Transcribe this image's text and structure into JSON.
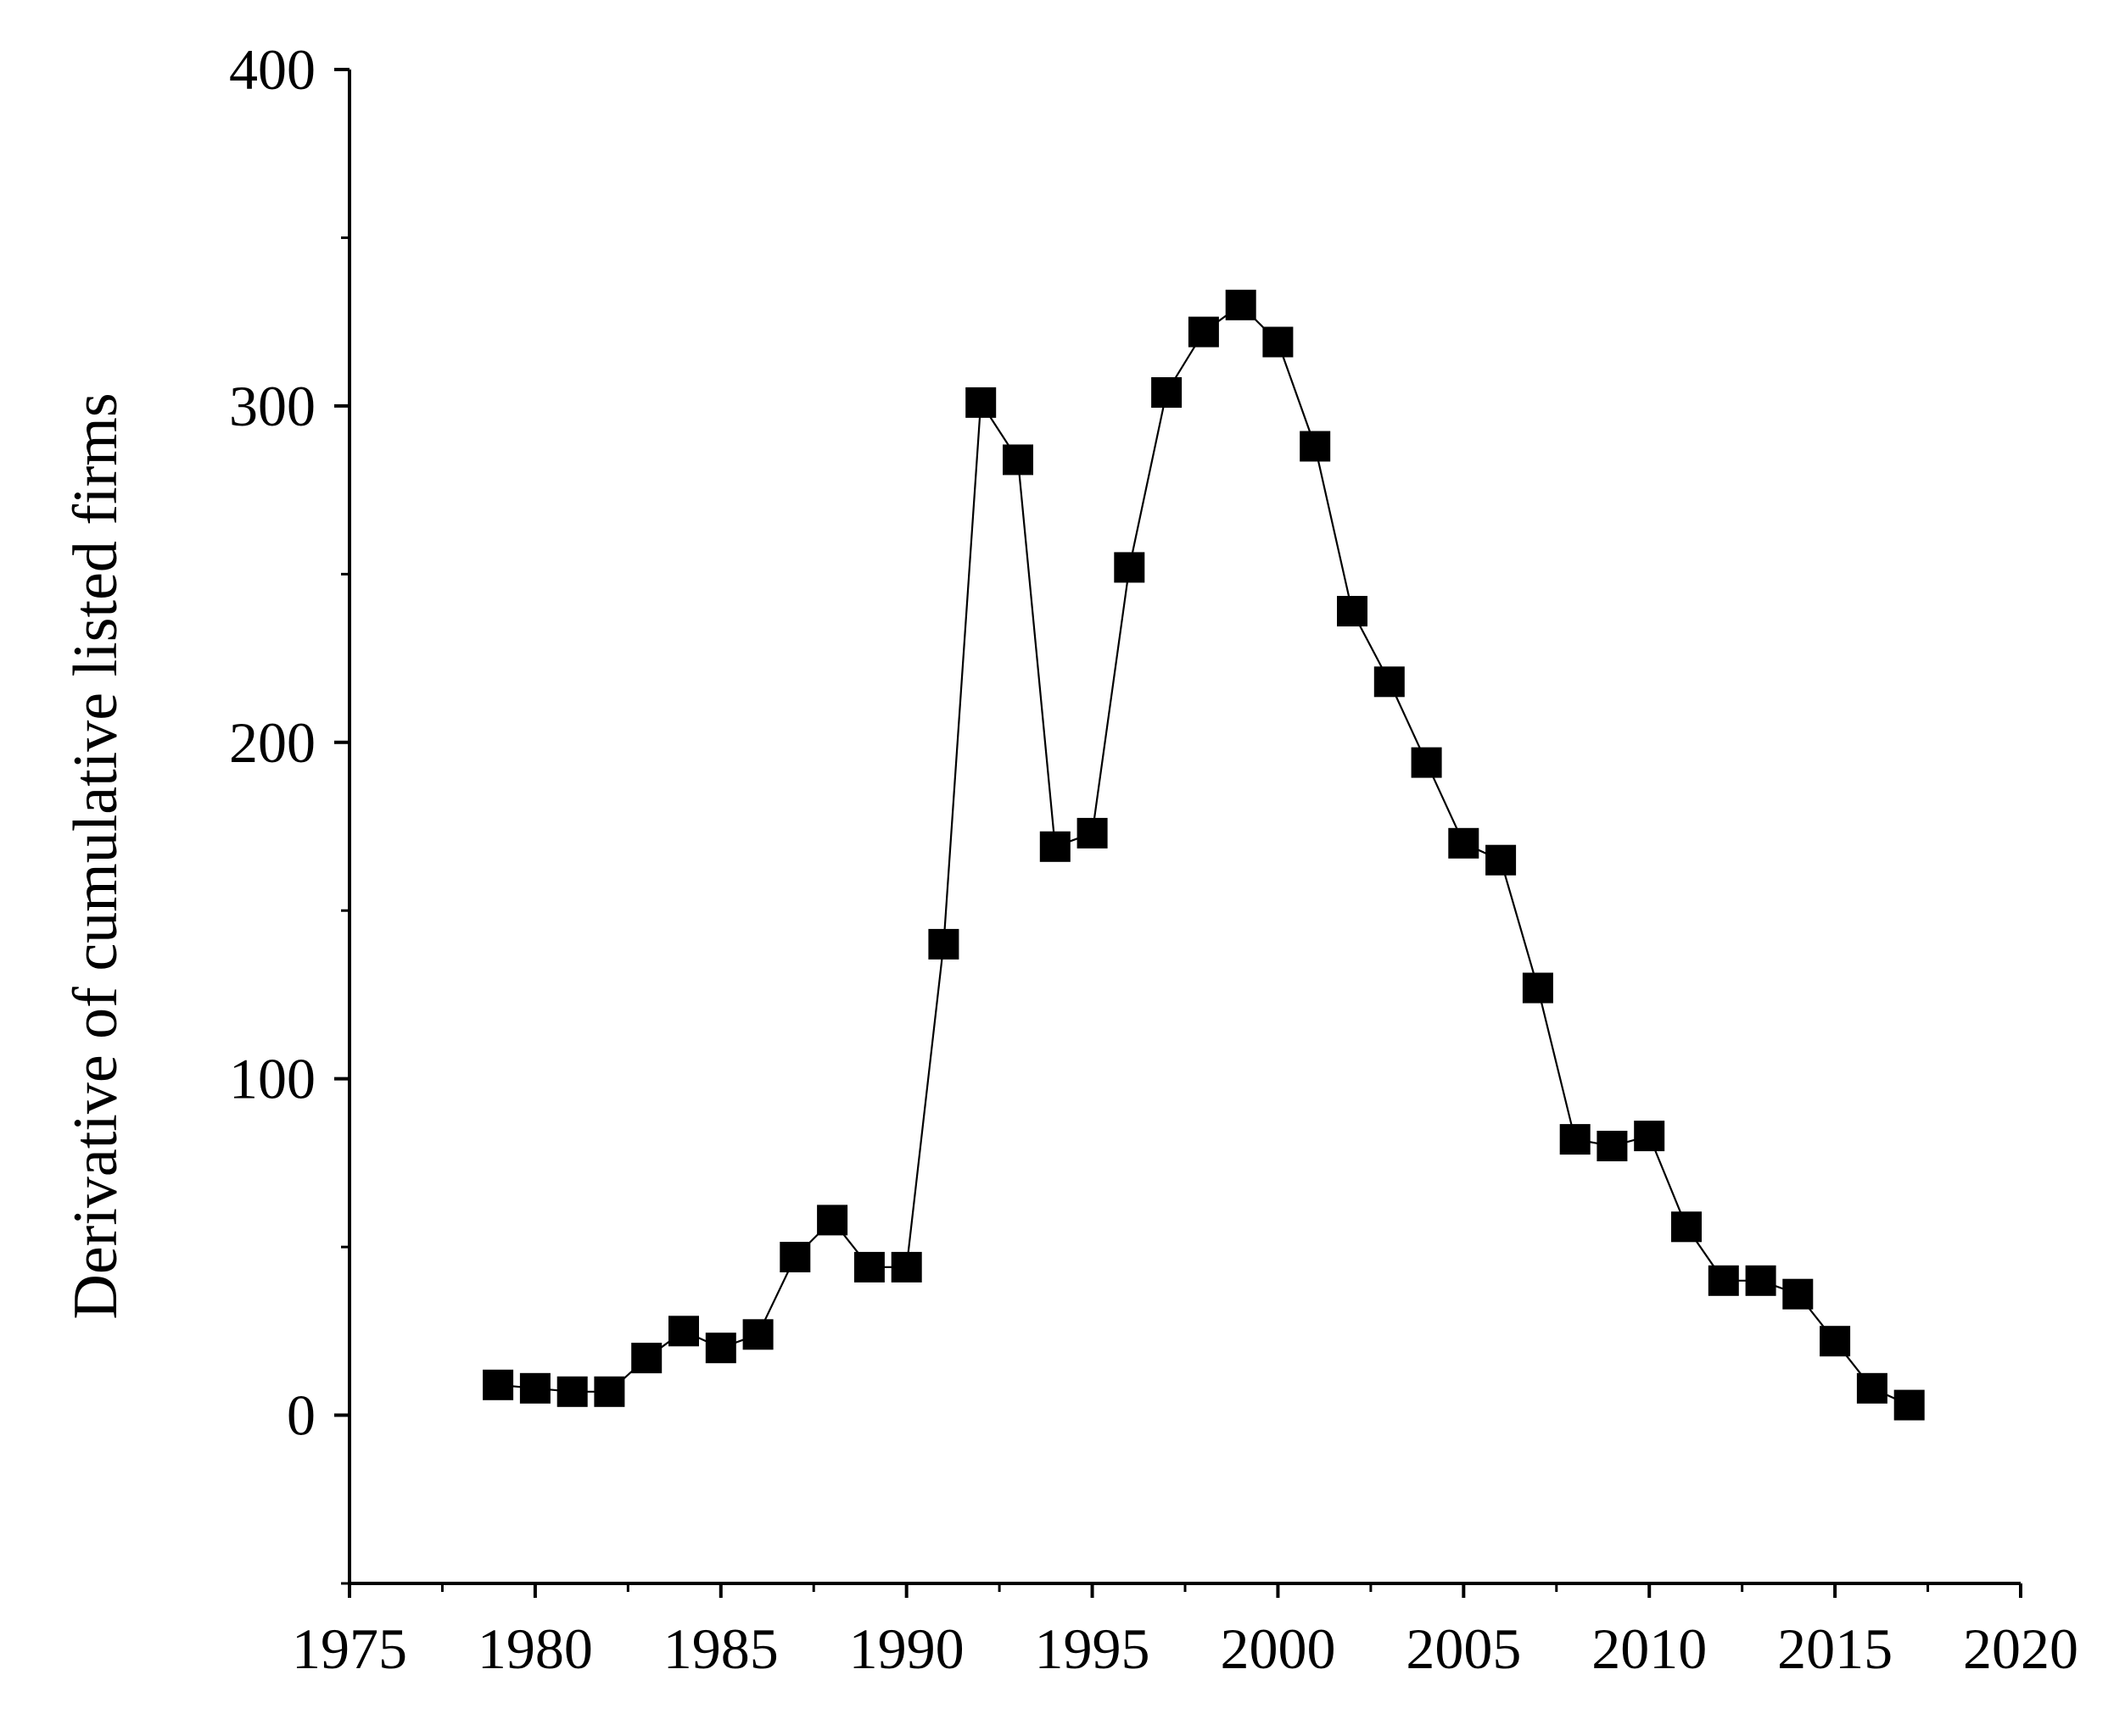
{
  "chart_data": {
    "type": "scatter",
    "title": "",
    "xlabel": "",
    "ylabel": "Derivative of cumulative listed firms",
    "xlim": [
      1975,
      2020
    ],
    "ylim": [
      -50,
      400
    ],
    "xticks": [
      1975,
      1980,
      1985,
      1990,
      1995,
      2000,
      2005,
      2010,
      2015,
      2020
    ],
    "yticks": [
      0,
      100,
      200,
      300,
      400
    ],
    "grid": false,
    "legend": "none",
    "marker": "square",
    "connected": true,
    "colors": {
      "marker": "#000000",
      "line": "#000000",
      "axis": "#000000"
    },
    "series": [
      {
        "x": [
          1979,
          1980,
          1981,
          1982,
          1983,
          1984,
          1985,
          1986,
          1987,
          1988,
          1989,
          1990,
          1991,
          1992,
          1993,
          1994,
          1995,
          1996,
          1997,
          1998,
          1999,
          2000,
          2001,
          2002,
          2003,
          2004,
          2005,
          2006,
          2007,
          2008,
          2009,
          2010,
          2011,
          2012,
          2013,
          2014,
          2015,
          2016,
          2017
        ],
        "y": [
          9,
          8,
          7,
          7,
          17,
          25,
          20,
          24,
          47,
          58,
          44,
          44,
          140,
          301,
          284,
          169,
          173,
          252,
          304,
          322,
          330,
          319,
          288,
          239,
          218,
          194,
          170,
          165,
          127,
          82,
          80,
          83,
          56,
          40,
          40,
          36,
          22,
          8,
          3
        ]
      }
    ]
  }
}
